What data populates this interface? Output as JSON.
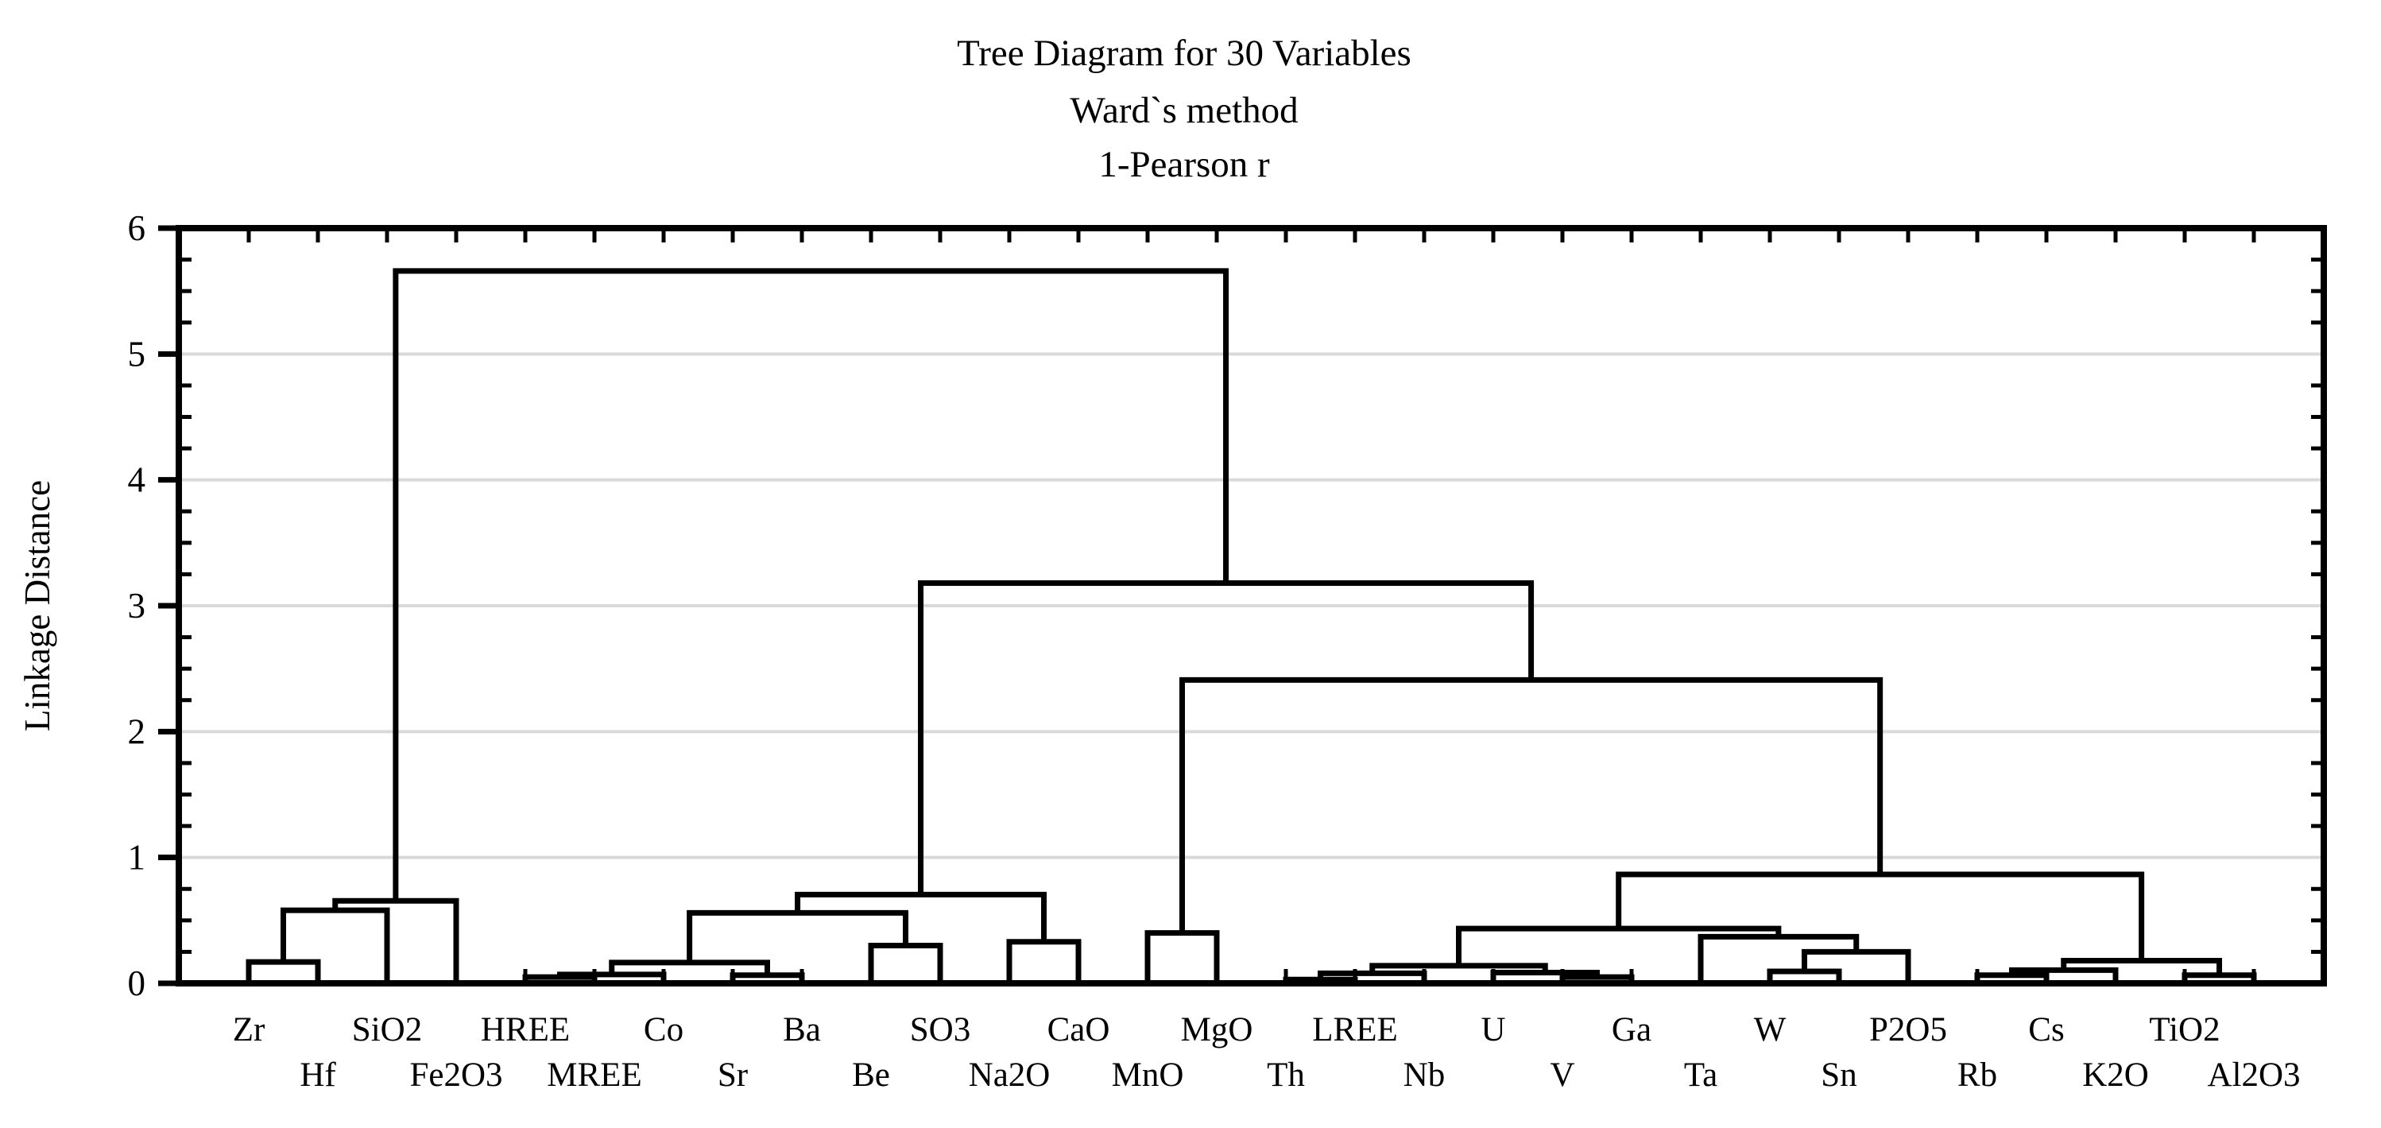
{
  "chart_data": {
    "type": "dendrogram",
    "title": "Tree Diagram for 30 Variables",
    "subtitle_method": "Ward`s method",
    "subtitle_metric": "1-Pearson r",
    "ylabel": "Linkage Distance",
    "ylim": [
      0,
      6
    ],
    "ytick_labels": [
      "0",
      "1",
      "2",
      "3",
      "4",
      "5",
      "6"
    ],
    "ytick_values": [
      0,
      1,
      2,
      3,
      4,
      5,
      6
    ],
    "y_minor_step": 0.25,
    "grid_values": [
      1,
      2,
      3,
      4,
      5
    ],
    "grid_on": true,
    "leaves": [
      "Zr",
      "Hf",
      "SiO2",
      "Fe2O3",
      "HREE",
      "MREE",
      "Co",
      "Sr",
      "Ba",
      "Be",
      "SO3",
      "Na2O",
      "CaO",
      "MnO",
      "MgO",
      "Th",
      "LREE",
      "Nb",
      "U",
      "V",
      "Ga",
      "Ta",
      "W",
      "Sn",
      "P2O5",
      "Rb",
      "Cs",
      "K2O",
      "TiO2",
      "Al2O3"
    ],
    "merges": [
      [
        "Zr",
        "Hf",
        0.17
      ],
      [
        0,
        "SiO2",
        0.58
      ],
      [
        1,
        "Fe2O3",
        0.655
      ],
      [
        "HREE",
        "MREE",
        0.05
      ],
      [
        3,
        "Co",
        0.07
      ],
      [
        "Sr",
        "Ba",
        0.065
      ],
      [
        4,
        5,
        0.165
      ],
      [
        "Be",
        "SO3",
        0.3
      ],
      [
        6,
        7,
        0.56
      ],
      [
        "Na2O",
        "CaO",
        0.33
      ],
      [
        8,
        9,
        0.705
      ],
      [
        "MnO",
        "MgO",
        0.4
      ],
      [
        "Th",
        "LREE",
        0.03
      ],
      [
        12,
        "Nb",
        0.08
      ],
      [
        "V",
        "Ga",
        0.05
      ],
      [
        "U",
        14,
        0.085
      ],
      [
        13,
        15,
        0.14
      ],
      [
        "W",
        "Sn",
        0.095
      ],
      [
        17,
        "P2O5",
        0.25
      ],
      [
        "Ta",
        18,
        0.37
      ],
      [
        16,
        19,
        0.435
      ],
      [
        "Rb",
        "Cs",
        0.065
      ],
      [
        21,
        "K2O",
        0.105
      ],
      [
        "TiO2",
        "Al2O3",
        0.065
      ],
      [
        22,
        23,
        0.18
      ],
      [
        20,
        24,
        0.865
      ],
      [
        11,
        25,
        2.41
      ],
      [
        10,
        26,
        3.18
      ],
      [
        2,
        27,
        5.66
      ]
    ],
    "colors": {
      "line": "#000000",
      "grid": "#d9d9d9",
      "background": "#ffffff",
      "text": "#000000"
    },
    "legend": null
  }
}
